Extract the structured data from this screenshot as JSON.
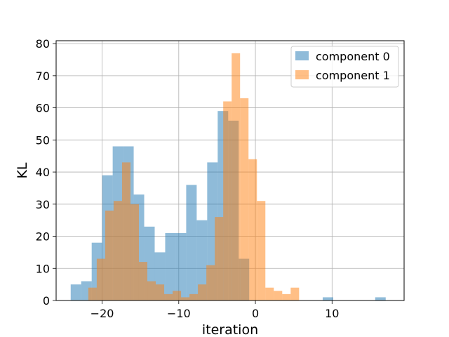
{
  "chart_data": {
    "type": "bar",
    "subtype": "overlaid-histogram",
    "xlabel": "iteration",
    "ylabel": "KL",
    "xlim": [
      -26,
      19.4
    ],
    "ylim": [
      0,
      80.9
    ],
    "xticks": [
      -20,
      -10,
      0,
      10
    ],
    "yticks": [
      0,
      10,
      20,
      30,
      40,
      50,
      60,
      70,
      80
    ],
    "xtick_labels": [
      "−20",
      "−10",
      "0",
      "10"
    ],
    "ytick_labels": [
      "0",
      "10",
      "20",
      "30",
      "40",
      "50",
      "60",
      "70",
      "80"
    ],
    "grid": true,
    "legend_position": "top-right",
    "series": [
      {
        "name": "component 0",
        "color": "#1f77b4",
        "opacity": 0.5,
        "bin_start": -24.1,
        "bin_width": 1.37,
        "counts": [
          5,
          6,
          18,
          39,
          48,
          48,
          33,
          23,
          15,
          21,
          21,
          36,
          25,
          43,
          59,
          56,
          13,
          0,
          0,
          0,
          0,
          0,
          0,
          0,
          1,
          0,
          0,
          0,
          0,
          1
        ]
      },
      {
        "name": "component 1",
        "color": "#ff7f0e",
        "opacity": 0.5,
        "bin_start": -21.8,
        "bin_width": 1.1,
        "counts": [
          4,
          13,
          28,
          31,
          43,
          30,
          12,
          6,
          5,
          2,
          3,
          1,
          2,
          5,
          11,
          26,
          62,
          77,
          63,
          44,
          31,
          4,
          3,
          2,
          4
        ]
      }
    ]
  }
}
